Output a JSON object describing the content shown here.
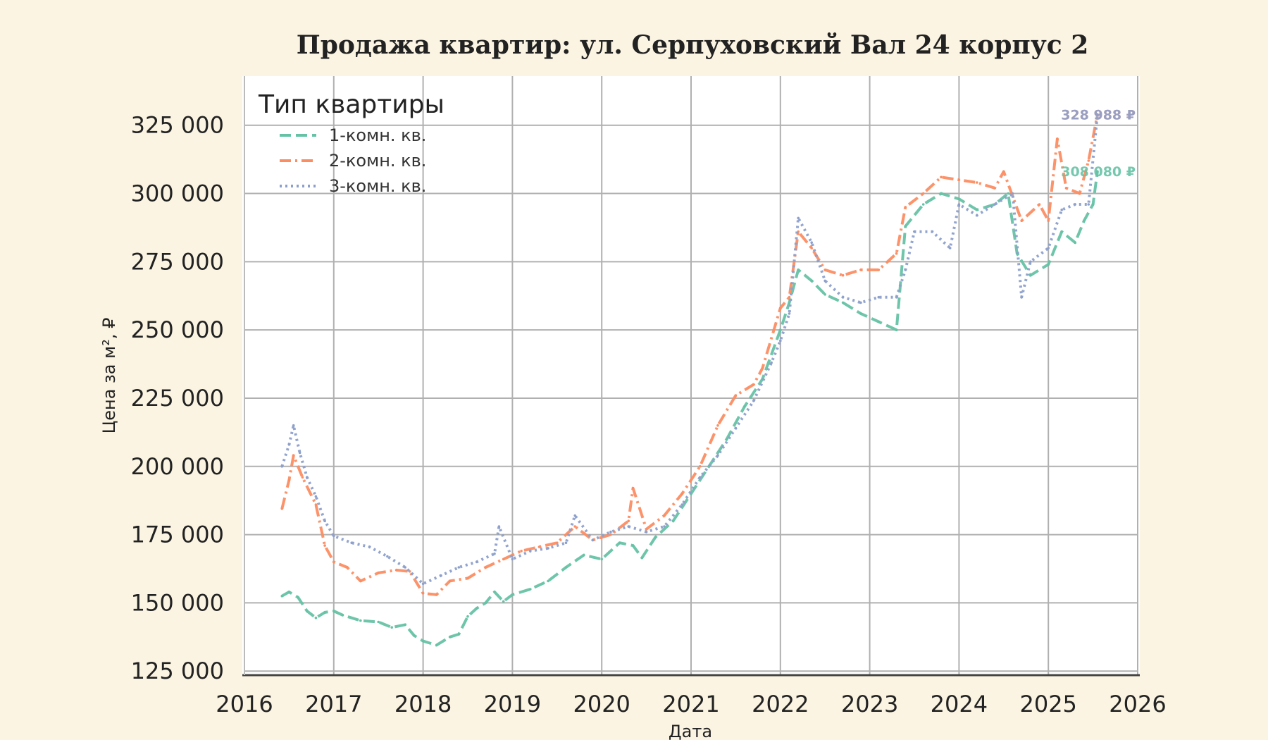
{
  "chart_data": {
    "type": "line",
    "title": "Продажа квартир: ул. Серпуховский Вал 24 корпус 2",
    "xlabel": "Дата",
    "ylabel": "Цена за м², ₽",
    "xlim": [
      2016,
      2026
    ],
    "ylim": [
      123500,
      343000
    ],
    "x_ticks": [
      2016,
      2017,
      2018,
      2019,
      2020,
      2021,
      2022,
      2023,
      2024,
      2025,
      2026
    ],
    "y_ticks": [
      125000,
      150000,
      175000,
      200000,
      225000,
      250000,
      275000,
      300000,
      325000
    ],
    "y_tick_labels": [
      "125 000",
      "150 000",
      "175 000",
      "200 000",
      "225 000",
      "250 000",
      "275 000",
      "300 000",
      "325 000"
    ],
    "grid": true,
    "legend_title": "Тип квартиры",
    "legend_position": "top-left",
    "series": [
      {
        "name": "1-комн. кв.",
        "color": "#66c2a5",
        "style": "dashed",
        "end_label": "308 080 ₽",
        "x": [
          2016.42,
          2016.5,
          2016.6,
          2016.7,
          2016.8,
          2016.9,
          2017.0,
          2017.1,
          2017.3,
          2017.5,
          2017.65,
          2017.8,
          2017.9,
          2018.0,
          2018.15,
          2018.3,
          2018.4,
          2018.5,
          2018.6,
          2018.7,
          2018.8,
          2018.9,
          2019.0,
          2019.2,
          2019.4,
          2019.6,
          2019.8,
          2020.0,
          2020.2,
          2020.35,
          2020.45,
          2020.6,
          2020.8,
          2021.0,
          2021.2,
          2021.4,
          2021.6,
          2021.8,
          2022.0,
          2022.1,
          2022.2,
          2022.35,
          2022.5,
          2022.7,
          2022.9,
          2023.1,
          2023.3,
          2023.4,
          2023.6,
          2023.8,
          2024.0,
          2024.2,
          2024.4,
          2024.55,
          2024.65,
          2024.8,
          2025.0,
          2025.15,
          2025.3,
          2025.4,
          2025.5,
          2025.55
        ],
        "y": [
          152500,
          154000,
          152000,
          147000,
          144500,
          146500,
          147000,
          145500,
          143500,
          143000,
          141000,
          142000,
          138000,
          136000,
          134500,
          137500,
          138500,
          145000,
          148000,
          150000,
          154000,
          150500,
          153000,
          155000,
          158000,
          163000,
          167500,
          166000,
          172000,
          171000,
          166500,
          174000,
          180000,
          190000,
          200000,
          210000,
          222000,
          232000,
          250000,
          260000,
          272000,
          268000,
          263000,
          260000,
          256000,
          253000,
          250000,
          288000,
          296000,
          300000,
          298000,
          294000,
          296000,
          300000,
          278000,
          270000,
          274000,
          286000,
          282000,
          290000,
          296000,
          308080
        ]
      },
      {
        "name": "2-комн. кв.",
        "color": "#fc8d62",
        "style": "dashdot",
        "end_label": "328 988 ₽",
        "x": [
          2016.42,
          2016.5,
          2016.55,
          2016.65,
          2016.8,
          2016.9,
          2017.0,
          2017.15,
          2017.3,
          2017.5,
          2017.7,
          2017.85,
          2018.0,
          2018.15,
          2018.3,
          2018.5,
          2018.7,
          2018.9,
          2019.1,
          2019.3,
          2019.5,
          2019.7,
          2019.9,
          2020.1,
          2020.3,
          2020.35,
          2020.5,
          2020.7,
          2020.9,
          2021.1,
          2021.3,
          2021.5,
          2021.7,
          2021.8,
          2022.0,
          2022.1,
          2022.2,
          2022.35,
          2022.5,
          2022.7,
          2022.9,
          2023.1,
          2023.3,
          2023.4,
          2023.6,
          2023.8,
          2024.0,
          2024.2,
          2024.4,
          2024.5,
          2024.7,
          2024.9,
          2025.0,
          2025.1,
          2025.2,
          2025.35,
          2025.45,
          2025.55
        ],
        "y": [
          184500,
          195000,
          204000,
          196000,
          186000,
          171000,
          165000,
          163000,
          158000,
          161000,
          162000,
          161500,
          153500,
          153000,
          158000,
          159000,
          163000,
          166000,
          169000,
          170500,
          172000,
          178000,
          173000,
          175000,
          180000,
          192000,
          177000,
          182000,
          190000,
          200000,
          215000,
          226000,
          230000,
          236000,
          258000,
          262000,
          286000,
          280000,
          272000,
          270000,
          272000,
          272000,
          278000,
          295000,
          300000,
          306000,
          305000,
          304000,
          302000,
          308000,
          290000,
          296000,
          290000,
          320000,
          302000,
          300000,
          312000,
          328988
        ]
      },
      {
        "name": "3-комн. кв.",
        "color": "#8da0cb",
        "style": "dotted",
        "end_label": "328 988 ₽",
        "x": [
          2016.42,
          2016.5,
          2016.55,
          2016.62,
          2016.7,
          2016.8,
          2016.9,
          2017.0,
          2017.2,
          2017.4,
          2017.6,
          2017.8,
          2018.0,
          2018.2,
          2018.4,
          2018.6,
          2018.8,
          2018.85,
          2019.0,
          2019.2,
          2019.4,
          2019.6,
          2019.7,
          2019.9,
          2020.1,
          2020.3,
          2020.5,
          2020.7,
          2020.9,
          2021.1,
          2021.3,
          2021.5,
          2021.7,
          2021.9,
          2022.0,
          2022.1,
          2022.2,
          2022.35,
          2022.5,
          2022.7,
          2022.9,
          2023.1,
          2023.3,
          2023.4,
          2023.5,
          2023.7,
          2023.9,
          2024.0,
          2024.2,
          2024.4,
          2024.6,
          2024.7,
          2024.8,
          2025.0,
          2025.15,
          2025.3,
          2025.45,
          2025.55
        ],
        "y": [
          200000,
          208000,
          215000,
          205000,
          196000,
          189000,
          180000,
          174500,
          172000,
          170500,
          167000,
          163000,
          157000,
          160000,
          163000,
          165000,
          168000,
          178000,
          166000,
          169000,
          170000,
          172000,
          182000,
          173000,
          176000,
          178000,
          176000,
          178000,
          186000,
          196000,
          204000,
          214000,
          224000,
          238000,
          246000,
          256000,
          291000,
          282000,
          268000,
          262000,
          260000,
          262000,
          262000,
          272000,
          286000,
          286000,
          280000,
          296000,
          292000,
          296000,
          300000,
          262000,
          275000,
          280000,
          294000,
          296000,
          296000,
          328988
        ]
      }
    ]
  }
}
